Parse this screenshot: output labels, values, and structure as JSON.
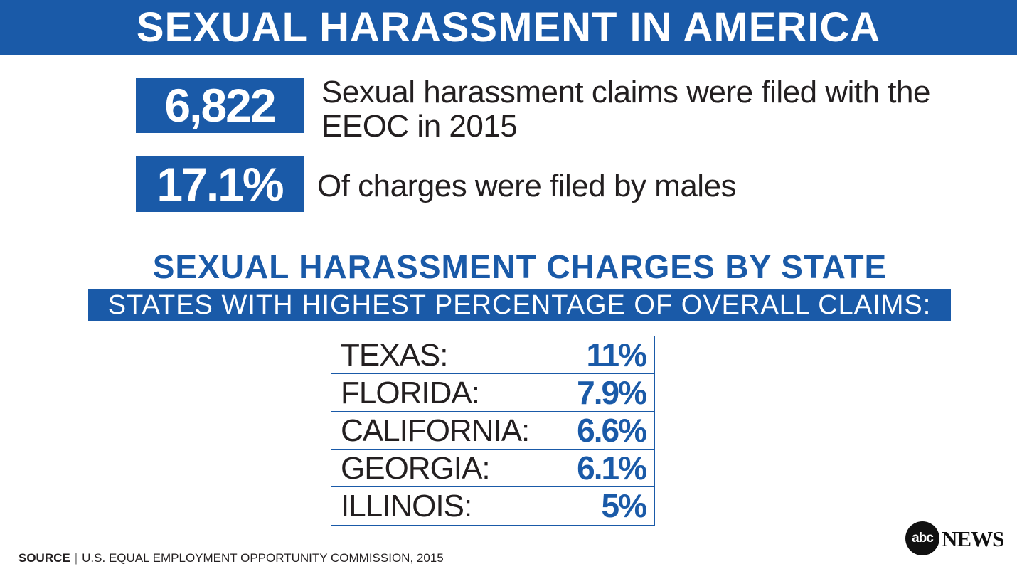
{
  "header": {
    "title": "SEXUAL HARASSMENT IN AMERICA"
  },
  "stats": [
    {
      "value": "6,822",
      "text": "Sexual harassment claims were filed with the EEOC in 2015"
    },
    {
      "value": "17.1%",
      "text": "Of charges were filed by males"
    }
  ],
  "section": {
    "title": "SEXUAL HARASSMENT CHARGES BY STATE",
    "subtitle": "STATES WITH HIGHEST PERCENTAGE OF OVERALL CLAIMS:"
  },
  "states": [
    {
      "name": "TEXAS:",
      "value": "11%"
    },
    {
      "name": "FLORIDA:",
      "value": "7.9%"
    },
    {
      "name": "CALIFORNIA:",
      "value": "6.6%"
    },
    {
      "name": "GEORGIA:",
      "value": "6.1%"
    },
    {
      "name": "ILLINOIS:",
      "value": "5%"
    }
  ],
  "source": {
    "label": "SOURCE",
    "separator": "|",
    "text": "U.S. EQUAL EMPLOYMENT OPPORTUNITY COMMISSION, 2015"
  },
  "logo": {
    "mark": "abc",
    "word": "NEWS"
  },
  "colors": {
    "brand_blue": "#1a5aa8",
    "text_dark": "#231f20"
  }
}
